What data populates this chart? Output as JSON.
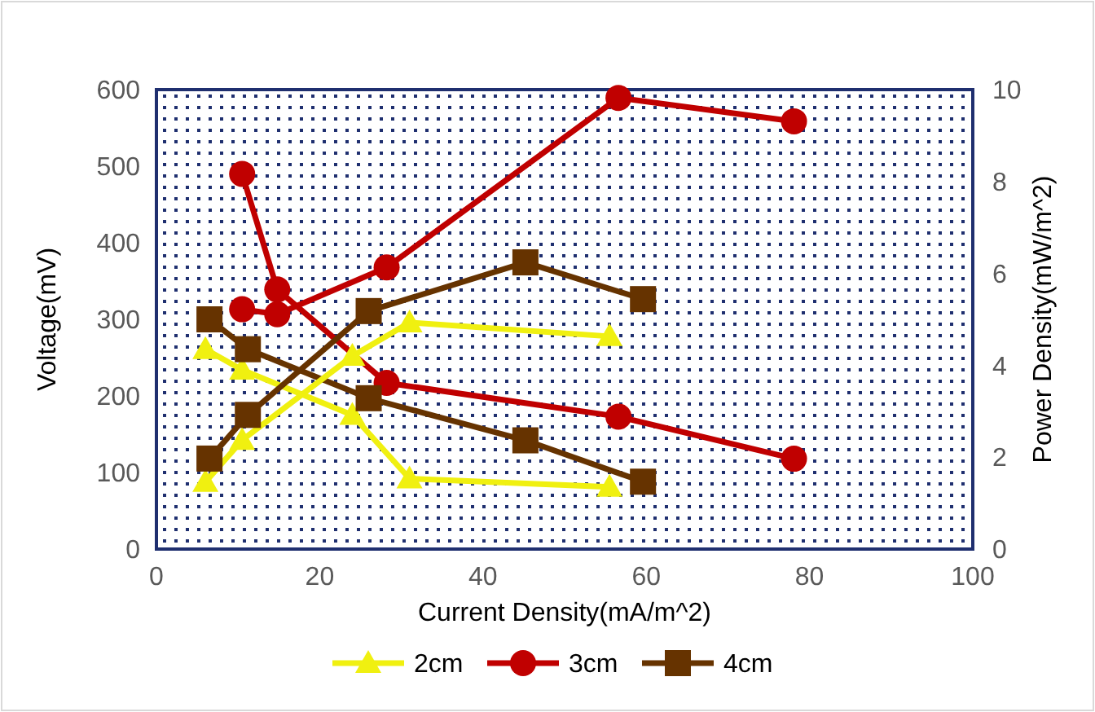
{
  "chart_data": {
    "type": "line",
    "xlabel": "Current Density(mA/m^2)",
    "ylabel": "Voltage(mV)",
    "y2label": "Power Density(mW/m^2)",
    "xlim": [
      0,
      100
    ],
    "xticks": [
      0,
      20,
      40,
      60,
      80,
      100
    ],
    "ylim": [
      0,
      600
    ],
    "yticks": [
      0,
      100,
      200,
      300,
      400,
      500,
      600
    ],
    "y2lim": [
      0,
      10
    ],
    "y2ticks": [
      0,
      2,
      4,
      6,
      8,
      10
    ],
    "grid": false,
    "legend": "bottom",
    "line_style": "solid",
    "series": [
      {
        "name": "2cm",
        "color": "#f0f010",
        "marker": "triangle",
        "x": [
          6,
          10.5,
          24,
          31,
          55.5
        ],
        "values": [
          261,
          234,
          175,
          92,
          81
        ]
      },
      {
        "name": "3cm",
        "color": "#c00000",
        "marker": "circle",
        "x": [
          10.5,
          14.8,
          28.2,
          56.6,
          78.1
        ],
        "values": [
          490,
          339,
          217,
          173,
          118
        ]
      },
      {
        "name": "4cm",
        "color": "#663300",
        "marker": "square",
        "x": [
          6.5,
          11.2,
          26,
          45.2,
          59.6
        ],
        "values": [
          300,
          261,
          197,
          142,
          88
        ]
      },
      {
        "color": "#f0f010",
        "marker": "triangle",
        "axis": "y2",
        "x": [
          6,
          10.5,
          24,
          31,
          55.5
        ],
        "values": [
          1.46,
          2.37,
          4.2,
          4.93,
          4.63
        ]
      },
      {
        "color": "#c00000",
        "marker": "circle",
        "axis": "y2",
        "x": [
          10.5,
          14.8,
          28.2,
          56.6,
          78.1
        ],
        "values": [
          5.22,
          5.11,
          6.13,
          9.82,
          9.31
        ]
      },
      {
        "color": "#663300",
        "marker": "square",
        "axis": "y2",
        "x": [
          6.5,
          11.2,
          26,
          45.2,
          59.6
        ],
        "values": [
          1.97,
          2.92,
          5.18,
          6.24,
          5.44
        ]
      }
    ]
  }
}
